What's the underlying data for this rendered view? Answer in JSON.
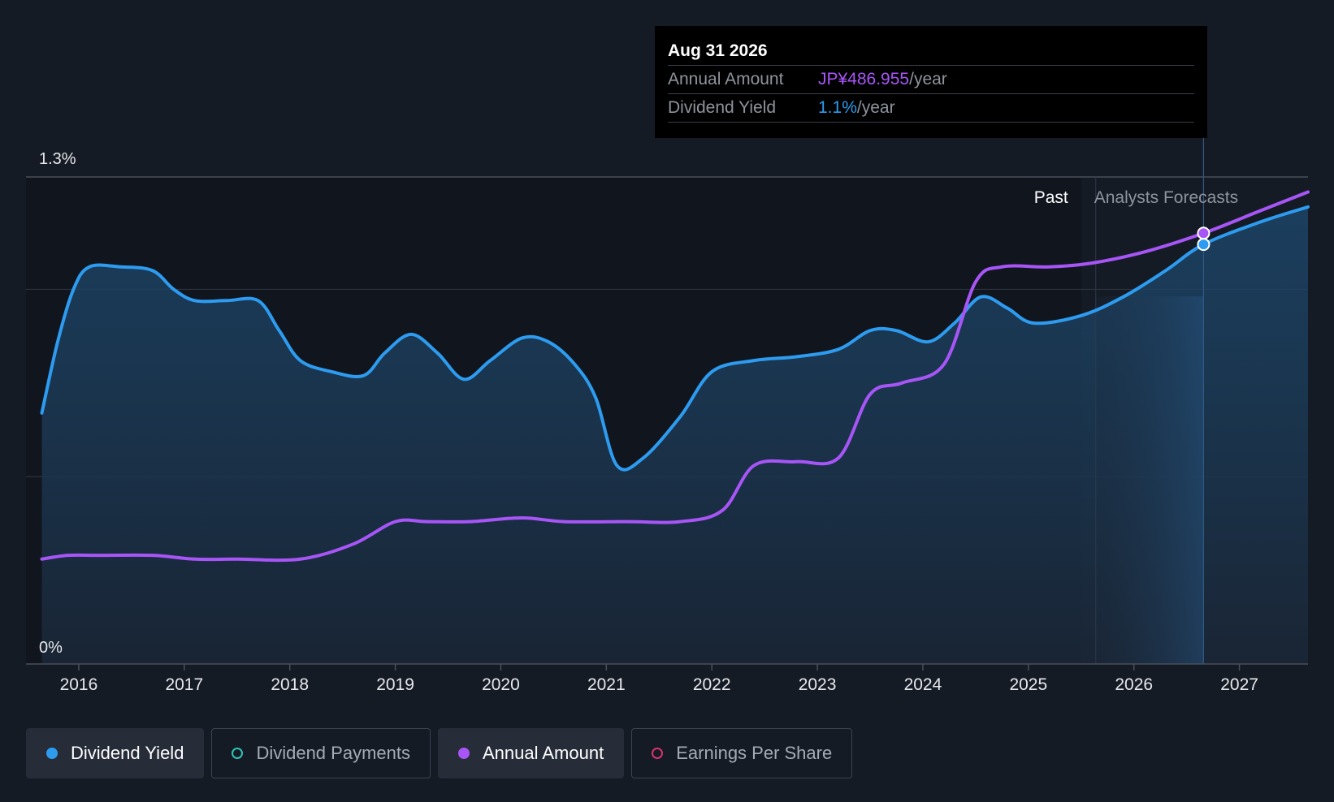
{
  "chart_data": {
    "type": "line",
    "y_axis": {
      "min": 0,
      "max": 1.3,
      "ticks": [
        {
          "value": 1.3,
          "label": "1.3%"
        },
        {
          "value": 0,
          "label": "0%"
        }
      ],
      "grid": true
    },
    "x_axis": {
      "min": 2015.5,
      "max": 2027.65,
      "ticks": [
        2016,
        2017,
        2018,
        2019,
        2020,
        2021,
        2022,
        2023,
        2024,
        2025,
        2026,
        2027
      ]
    },
    "regions": {
      "past_label": "Past",
      "forecast_label": "Analysts Forecasts",
      "forecast_start": 2025.5
    },
    "series": [
      {
        "name": "Dividend Yield",
        "color": "#2d9cf0",
        "filled": true,
        "points": [
          [
            2015.65,
            0.67
          ],
          [
            2015.8,
            0.86
          ],
          [
            2015.95,
            1.0
          ],
          [
            2016.1,
            1.06
          ],
          [
            2016.4,
            1.06
          ],
          [
            2016.7,
            1.05
          ],
          [
            2016.9,
            1.0
          ],
          [
            2017.1,
            0.97
          ],
          [
            2017.4,
            0.97
          ],
          [
            2017.7,
            0.97
          ],
          [
            2017.9,
            0.89
          ],
          [
            2018.1,
            0.81
          ],
          [
            2018.4,
            0.78
          ],
          [
            2018.7,
            0.77
          ],
          [
            2018.9,
            0.83
          ],
          [
            2019.15,
            0.88
          ],
          [
            2019.4,
            0.83
          ],
          [
            2019.65,
            0.76
          ],
          [
            2019.9,
            0.81
          ],
          [
            2020.2,
            0.87
          ],
          [
            2020.45,
            0.86
          ],
          [
            2020.7,
            0.8
          ],
          [
            2020.9,
            0.71
          ],
          [
            2021.1,
            0.53
          ],
          [
            2021.35,
            0.55
          ],
          [
            2021.7,
            0.66
          ],
          [
            2022.0,
            0.78
          ],
          [
            2022.4,
            0.81
          ],
          [
            2022.8,
            0.82
          ],
          [
            2023.2,
            0.84
          ],
          [
            2023.5,
            0.89
          ],
          [
            2023.75,
            0.89
          ],
          [
            2024.05,
            0.86
          ],
          [
            2024.3,
            0.91
          ],
          [
            2024.55,
            0.98
          ],
          [
            2024.8,
            0.95
          ],
          [
            2025.05,
            0.91
          ],
          [
            2025.5,
            0.93
          ],
          [
            2025.9,
            0.98
          ],
          [
            2026.3,
            1.05
          ],
          [
            2026.66,
            1.12
          ],
          [
            2027.2,
            1.18
          ],
          [
            2027.65,
            1.22
          ]
        ]
      },
      {
        "name": "Annual Amount",
        "color": "#a855f7",
        "filled": false,
        "points": [
          [
            2015.65,
            0.28
          ],
          [
            2015.9,
            0.29
          ],
          [
            2016.2,
            0.29
          ],
          [
            2016.7,
            0.29
          ],
          [
            2017.1,
            0.28
          ],
          [
            2017.5,
            0.28
          ],
          [
            2018.1,
            0.28
          ],
          [
            2018.6,
            0.32
          ],
          [
            2019.0,
            0.38
          ],
          [
            2019.3,
            0.38
          ],
          [
            2019.7,
            0.38
          ],
          [
            2020.2,
            0.39
          ],
          [
            2020.6,
            0.38
          ],
          [
            2021.2,
            0.38
          ],
          [
            2021.7,
            0.38
          ],
          [
            2022.1,
            0.41
          ],
          [
            2022.4,
            0.53
          ],
          [
            2022.8,
            0.54
          ],
          [
            2023.2,
            0.55
          ],
          [
            2023.5,
            0.72
          ],
          [
            2023.8,
            0.75
          ],
          [
            2024.2,
            0.8
          ],
          [
            2024.5,
            1.02
          ],
          [
            2024.75,
            1.06
          ],
          [
            2025.2,
            1.06
          ],
          [
            2025.6,
            1.07
          ],
          [
            2026.1,
            1.1
          ],
          [
            2026.66,
            1.15
          ],
          [
            2027.2,
            1.21
          ],
          [
            2027.65,
            1.26
          ]
        ]
      }
    ],
    "hover": {
      "x": 2026.66,
      "yield_value": 1.12,
      "amount_value": 1.15
    }
  },
  "tooltip": {
    "date": "Aug 31 2026",
    "rows": [
      {
        "label": "Annual Amount",
        "value": "JP¥486.955",
        "unit": "/year",
        "value_color": "#a855f7"
      },
      {
        "label": "Dividend Yield",
        "value": "1.1%",
        "unit": "/year",
        "value_color": "#2d9cf0"
      }
    ]
  },
  "legend": [
    {
      "label": "Dividend Yield",
      "color": "#2d9cf0",
      "active": true,
      "hollow": false
    },
    {
      "label": "Dividend Payments",
      "color": "#2ec4b6",
      "active": false,
      "hollow": true
    },
    {
      "label": "Annual Amount",
      "color": "#a855f7",
      "active": true,
      "hollow": false
    },
    {
      "label": "Earnings Per Share",
      "color": "#d6336c",
      "active": false,
      "hollow": true
    }
  ]
}
